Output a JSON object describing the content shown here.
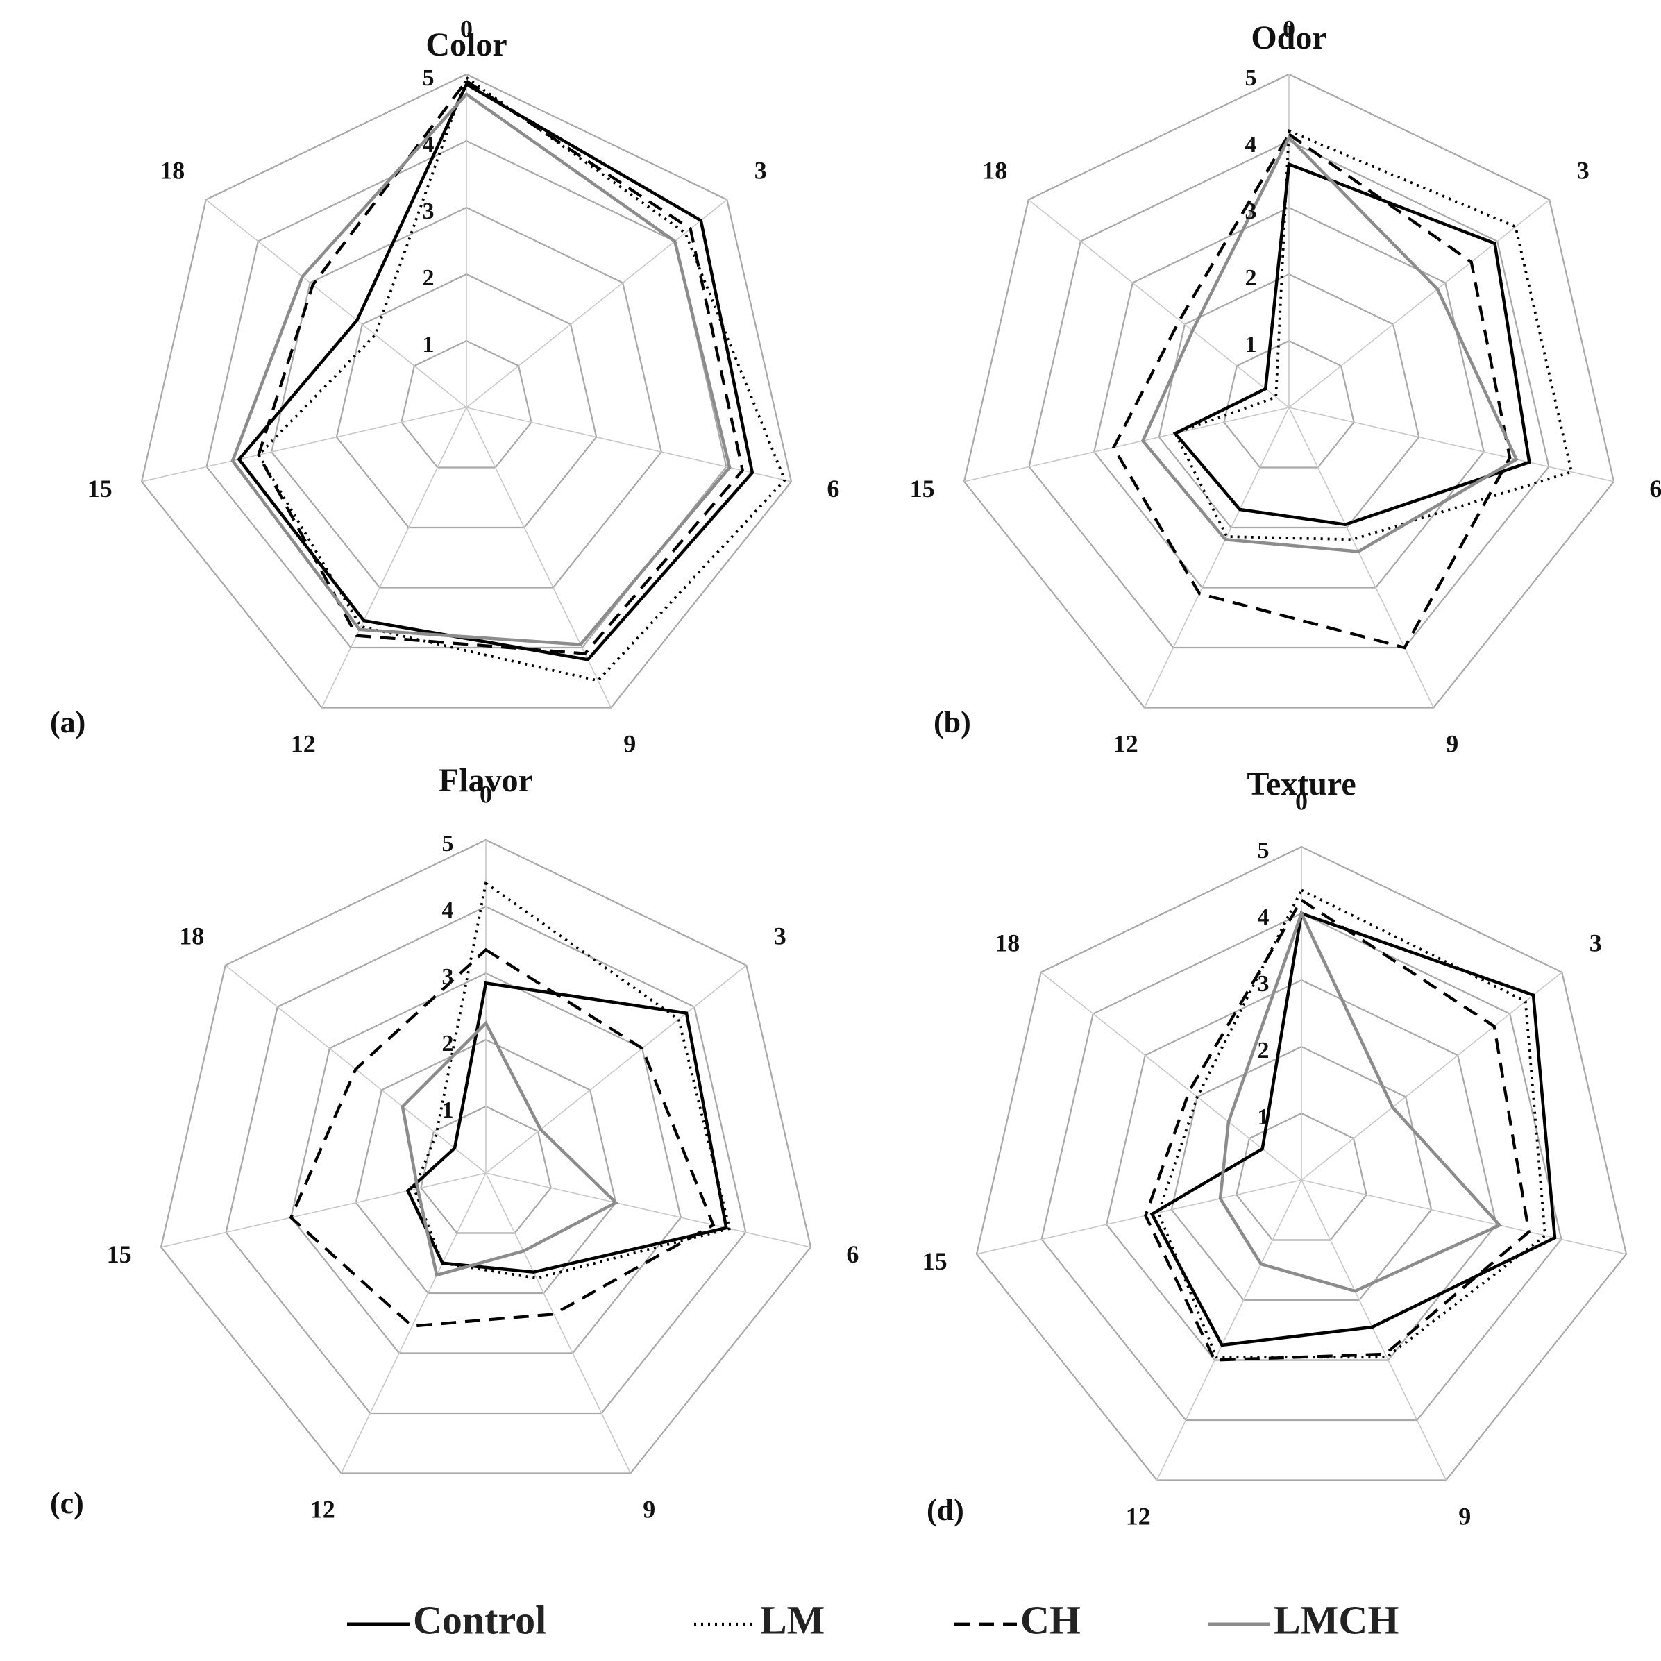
{
  "colors": {
    "control": "#000000",
    "lm": "#000000",
    "ch": "#000000",
    "lmch": "#8c8c8c",
    "grid": "#a8a8a8"
  },
  "legend": [
    {
      "key": "control",
      "label": "Control",
      "style": "solid"
    },
    {
      "key": "lm",
      "label": "LM",
      "style": "dotted"
    },
    {
      "key": "ch",
      "label": "CH",
      "style": "dashed"
    },
    {
      "key": "lmch",
      "label": "LMCH",
      "style": "gray"
    }
  ],
  "chart_data": [
    {
      "type": "radar",
      "title": "Color",
      "panel": "(a)",
      "axes": [
        "0",
        "3",
        "6",
        "9",
        "12",
        "15",
        "18"
      ],
      "rlim": [
        0,
        5
      ],
      "ticks": [
        "1",
        "2",
        "3",
        "4",
        "5"
      ],
      "series": [
        {
          "name": "Control",
          "values": [
            4.85,
            4.5,
            4.4,
            4.2,
            3.55,
            3.5,
            2.1
          ]
        },
        {
          "name": "LM",
          "values": [
            4.95,
            4.2,
            4.9,
            4.55,
            3.65,
            3.2,
            1.75
          ]
        },
        {
          "name": "CH",
          "values": [
            4.9,
            4.3,
            4.25,
            4.1,
            3.8,
            3.2,
            2.95
          ]
        },
        {
          "name": "LMCH",
          "values": [
            4.7,
            4.0,
            4.05,
            3.95,
            3.7,
            3.6,
            3.15
          ]
        }
      ]
    },
    {
      "type": "radar",
      "title": "Odor",
      "panel": "(b)",
      "axes": [
        "0",
        "3",
        "6",
        "9",
        "12",
        "15",
        "18"
      ],
      "rlim": [
        0,
        5
      ],
      "ticks": [
        "1",
        "2",
        "3",
        "4",
        "5"
      ],
      "series": [
        {
          "name": "Control",
          "values": [
            3.65,
            3.95,
            3.7,
            1.95,
            1.7,
            1.75,
            0.45
          ]
        },
        {
          "name": "LM",
          "values": [
            4.15,
            4.35,
            4.35,
            2.2,
            2.15,
            1.75,
            0.25
          ]
        },
        {
          "name": "CH",
          "values": [
            4.1,
            3.5,
            3.4,
            4.0,
            3.1,
            2.7,
            2.1
          ]
        },
        {
          "name": "LMCH",
          "values": [
            4.05,
            2.85,
            3.5,
            2.4,
            2.2,
            2.25,
            1.85
          ]
        }
      ]
    },
    {
      "type": "radar",
      "title": "Flavor",
      "panel": "(c)",
      "axes": [
        "0",
        "3",
        "6",
        "9",
        "12",
        "15",
        "18"
      ],
      "rlim": [
        0,
        5
      ],
      "ticks": [
        "1",
        "2",
        "3",
        "4",
        "5"
      ],
      "series": [
        {
          "name": "Control",
          "values": [
            2.85,
            3.85,
            3.7,
            1.65,
            1.5,
            1.2,
            0.6
          ]
        },
        {
          "name": "LM",
          "values": [
            4.35,
            3.7,
            3.75,
            1.75,
            1.5,
            1.1,
            0.95
          ]
        },
        {
          "name": "CH",
          "values": [
            3.35,
            3.0,
            3.5,
            2.35,
            2.55,
            3.0,
            2.5
          ]
        },
        {
          "name": "LMCH",
          "values": [
            2.25,
            1.05,
            2.0,
            1.3,
            1.7,
            1.05,
            1.6
          ]
        }
      ]
    },
    {
      "type": "radar",
      "title": "Texture",
      "panel": "(d)",
      "axes": [
        "0",
        "3",
        "6",
        "9",
        "12",
        "15",
        "18"
      ],
      "rlim": [
        0,
        5
      ],
      "ticks": [
        "1",
        "2",
        "3",
        "4",
        "5"
      ],
      "series": [
        {
          "name": "Control",
          "values": [
            4.0,
            4.45,
            3.9,
            2.45,
            2.75,
            2.3,
            0.75
          ]
        },
        {
          "name": "LM",
          "values": [
            4.35,
            4.3,
            3.75,
            2.95,
            2.95,
            2.2,
            2.0
          ]
        },
        {
          "name": "CH",
          "values": [
            4.2,
            3.7,
            3.5,
            2.9,
            3.0,
            2.4,
            2.15
          ]
        },
        {
          "name": "LMCH",
          "values": [
            4.0,
            1.75,
            3.05,
            1.85,
            1.4,
            1.25,
            1.4
          ]
        }
      ]
    }
  ]
}
